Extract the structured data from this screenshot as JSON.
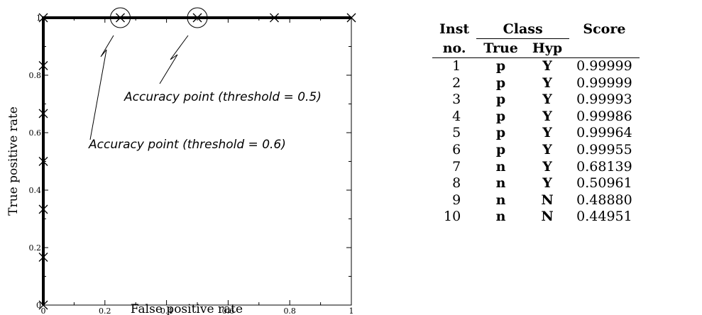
{
  "chart_data": {
    "type": "line",
    "xlabel": "False positive rate",
    "ylabel": "True positive rate",
    "xlim": [
      0,
      1
    ],
    "ylim": [
      0,
      1
    ],
    "x_ticks": [
      "0",
      "0.2",
      "0.4",
      "0.6",
      "0.8",
      "1"
    ],
    "y_ticks": [
      "0",
      "0.2",
      "0.4",
      "0.6",
      "0.8",
      "1"
    ],
    "grid": false,
    "series": [
      {
        "x": [
          0,
          0,
          0,
          0,
          0,
          0,
          0,
          0.25,
          0.5,
          0.75,
          1
        ],
        "y": [
          0,
          0.1667,
          0.3333,
          0.5,
          0.6667,
          0.8333,
          1,
          1,
          1,
          1,
          1
        ]
      }
    ],
    "highlighted_points": [
      {
        "x": 0.25,
        "y": 1,
        "label": "Accuracy point (threshold = 0.6)"
      },
      {
        "x": 0.5,
        "y": 1,
        "label": "Accuracy point (threshold = 0.5)"
      }
    ]
  },
  "table": {
    "headers": {
      "inst_line1": "Inst",
      "inst_line2": "no.",
      "class": "Class",
      "true": "True",
      "hyp": "Hyp",
      "score": "Score"
    },
    "rows": [
      {
        "no": "1",
        "true": "p",
        "hyp": "Y",
        "score": "0.99999"
      },
      {
        "no": "2",
        "true": "p",
        "hyp": "Y",
        "score": "0.99999"
      },
      {
        "no": "3",
        "true": "p",
        "hyp": "Y",
        "score": "0.99993"
      },
      {
        "no": "4",
        "true": "p",
        "hyp": "Y",
        "score": "0.99986"
      },
      {
        "no": "5",
        "true": "p",
        "hyp": "Y",
        "score": "0.99964"
      },
      {
        "no": "6",
        "true": "p",
        "hyp": "Y",
        "score": "0.99955"
      },
      {
        "no": "7",
        "true": "n",
        "hyp": "Y",
        "score": "0.68139"
      },
      {
        "no": "8",
        "true": "n",
        "hyp": "Y",
        "score": "0.50961"
      },
      {
        "no": "9",
        "true": "n",
        "hyp": "N",
        "score": "0.48880"
      },
      {
        "no": "10",
        "true": "n",
        "hyp": "N",
        "score": "0.44951"
      }
    ]
  }
}
